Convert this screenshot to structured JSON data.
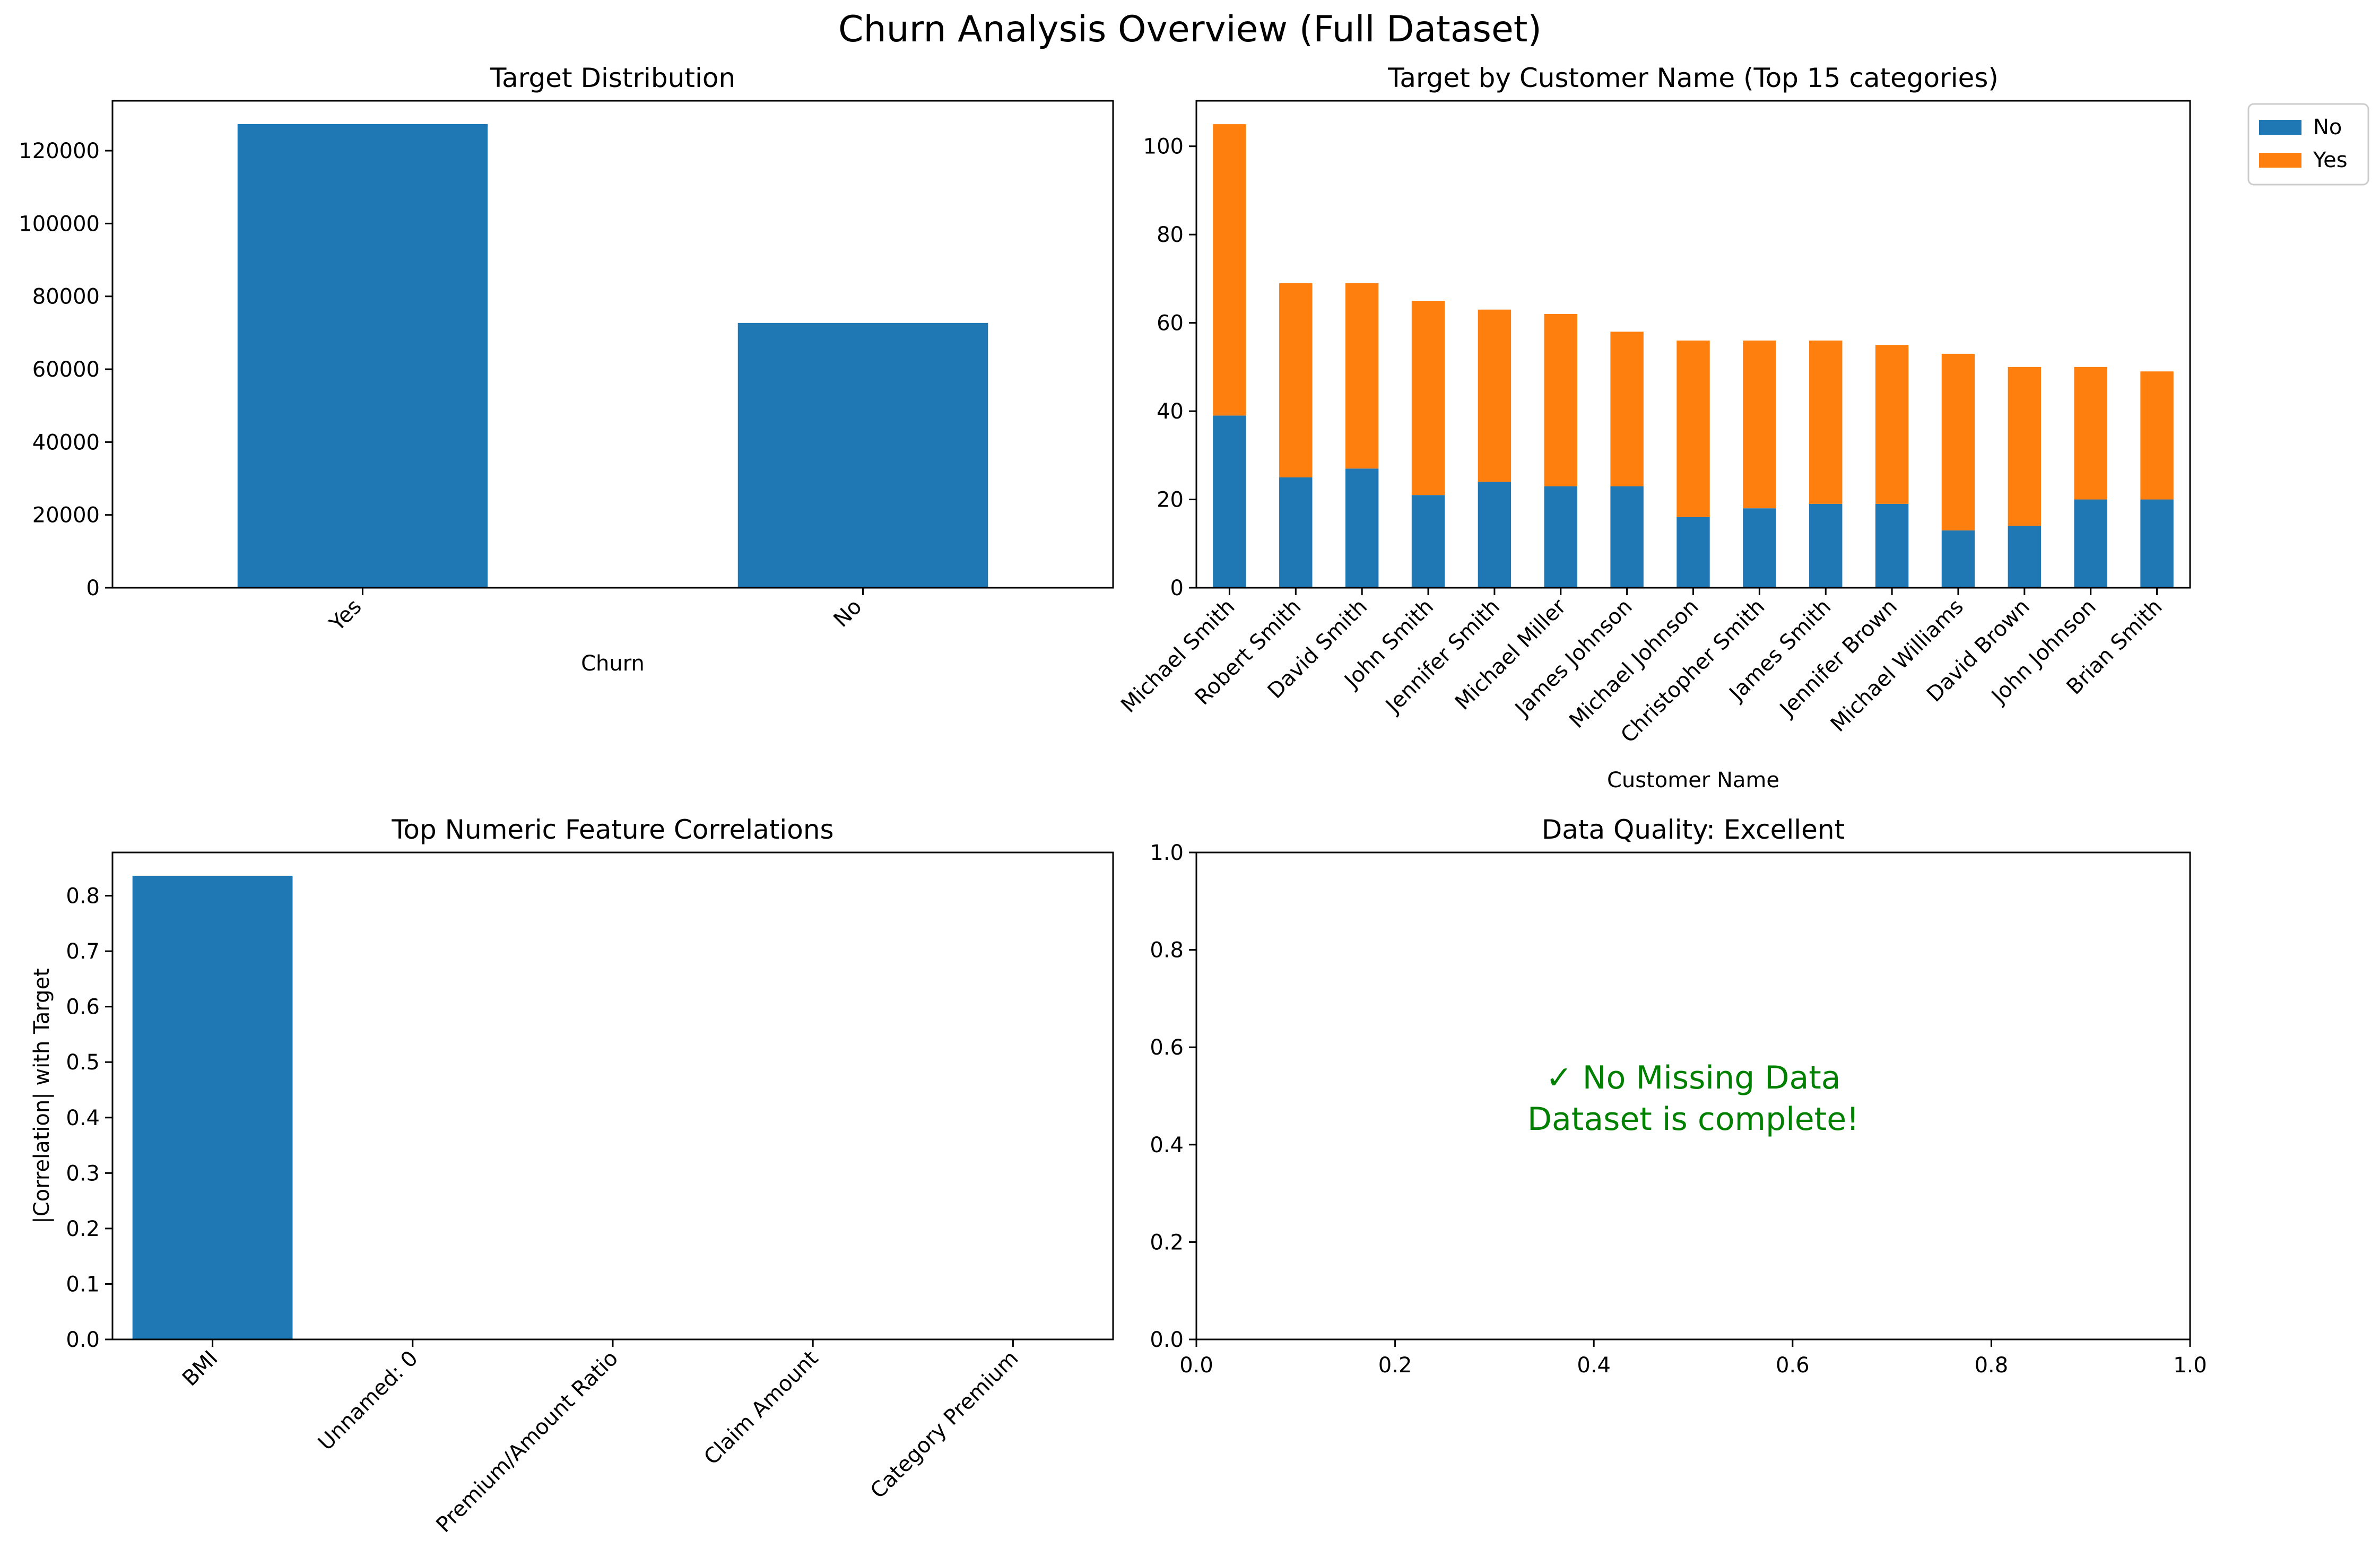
{
  "figure_title": "Churn Analysis Overview (Full Dataset)",
  "colors": {
    "blue": "#1f77b4",
    "orange": "#ff7f0e",
    "note_green": "#008000"
  },
  "chart_data": [
    {
      "id": "target-distribution",
      "type": "bar",
      "title": "Target Distribution",
      "xlabel": "Churn",
      "ylabel": "",
      "categories": [
        "Yes",
        "No"
      ],
      "values": [
        127300,
        72700
      ],
      "ylim": [
        0,
        133700
      ],
      "yticks": [
        0,
        20000,
        40000,
        60000,
        80000,
        100000,
        120000
      ],
      "ytick_labels": [
        "0",
        "20000",
        "40000",
        "60000",
        "80000",
        "100000",
        "120000"
      ],
      "grid": false
    },
    {
      "id": "target-by-customer-name",
      "type": "bar",
      "stacked": true,
      "title": "Target by Customer Name (Top 15 categories)",
      "xlabel": "Customer Name",
      "ylabel": "",
      "categories": [
        "Michael Smith",
        "Robert Smith",
        "David Smith",
        "John Smith",
        "Jennifer Smith",
        "Michael Miller",
        "James Johnson",
        "Michael Johnson",
        "Christopher Smith",
        "James Smith",
        "Jennifer Brown",
        "Michael Williams",
        "David Brown",
        "John Johnson",
        "Brian Smith"
      ],
      "series": [
        {
          "name": "No",
          "values": [
            39,
            25,
            27,
            21,
            24,
            23,
            23,
            16,
            18,
            19,
            19,
            13,
            14,
            20,
            20
          ]
        },
        {
          "name": "Yes",
          "values": [
            66,
            44,
            42,
            44,
            39,
            39,
            35,
            40,
            38,
            37,
            36,
            40,
            36,
            30,
            29
          ]
        }
      ],
      "ylim": [
        0,
        110.3
      ],
      "yticks": [
        0,
        20,
        40,
        60,
        80,
        100
      ],
      "ytick_labels": [
        "0",
        "20",
        "40",
        "60",
        "80",
        "100"
      ],
      "legend_placement": "outside upper right",
      "grid": false
    },
    {
      "id": "top-numeric-feature-correlations",
      "type": "bar",
      "title": "Top Numeric Feature Correlations",
      "xlabel": "",
      "ylabel": "|Correlation| with Target",
      "categories": [
        "BMI",
        "Unnamed: 0",
        "Premium/Amount Ratio",
        "Claim Amount",
        "Category Premium"
      ],
      "values": [
        0.836,
        0.001,
        0.0005,
        0.0003,
        0.0001
      ],
      "ylim": [
        0,
        0.878
      ],
      "yticks": [
        0,
        0.1,
        0.2,
        0.3,
        0.4,
        0.5,
        0.6,
        0.7,
        0.8
      ],
      "ytick_labels": [
        "0.0",
        "0.1",
        "0.2",
        "0.3",
        "0.4",
        "0.5",
        "0.6",
        "0.7",
        "0.8"
      ],
      "grid": false
    },
    {
      "id": "data-quality",
      "type": "text",
      "title": "Data Quality: Excellent",
      "xlim": [
        0,
        1
      ],
      "ylim": [
        0,
        1
      ],
      "ticks": [
        0,
        0.2,
        0.4,
        0.6,
        0.8,
        1.0
      ],
      "tick_labels": [
        "0.0",
        "0.2",
        "0.4",
        "0.6",
        "0.8",
        "1.0"
      ],
      "annotation_lines": [
        "✓ No Missing Data",
        "Dataset is complete!"
      ],
      "annotation_position": [
        0.5,
        0.5
      ]
    }
  ]
}
